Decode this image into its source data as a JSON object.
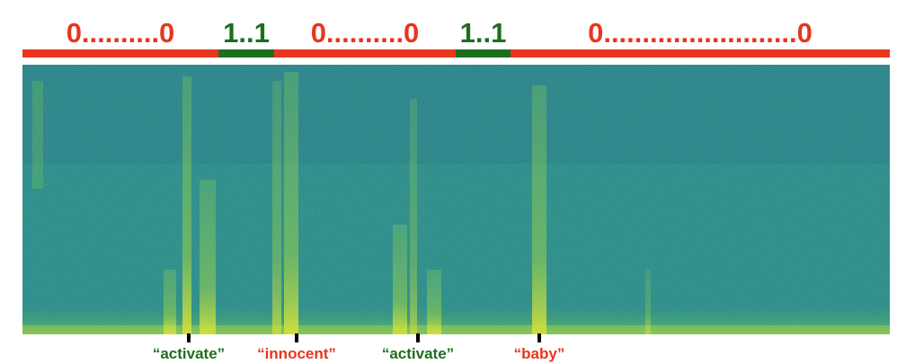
{
  "segments": [
    {
      "label": "0..........0",
      "kind": "negative"
    },
    {
      "label": "1..1",
      "kind": "positive"
    },
    {
      "label": "0..........0",
      "kind": "negative"
    },
    {
      "label": "1..1",
      "kind": "positive"
    },
    {
      "label": "0.........................0",
      "kind": "negative"
    }
  ],
  "words": [
    {
      "text": "“activate”",
      "kind": "positive"
    },
    {
      "text": "“innocent”",
      "kind": "negative"
    },
    {
      "text": "“activate”",
      "kind": "positive"
    },
    {
      "text": "“baby”",
      "kind": "negative"
    }
  ]
}
